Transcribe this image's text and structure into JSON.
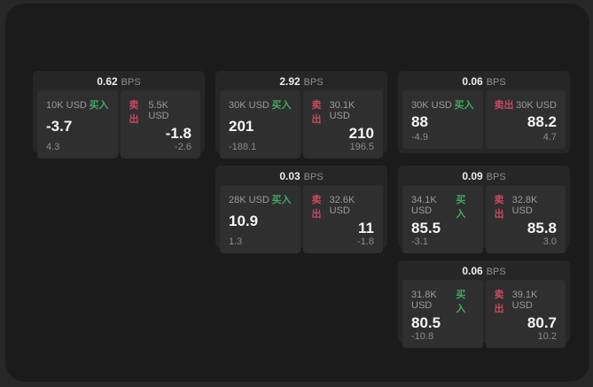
{
  "colors": {
    "buy": "#3eaa61",
    "sell": "#cc4763",
    "window_bg": "#1b1b1b",
    "card_bg": "#262626",
    "panel_bg": "#2f2f2f"
  },
  "bps_unit": "BPS",
  "cards": [
    {
      "bps": "0.62",
      "buy": {
        "size": "10K USD",
        "tag": "买入",
        "value": "-3.7",
        "sub": "4.3"
      },
      "sell": {
        "size": "5.5K USD",
        "tag": "卖出",
        "value": "-1.8",
        "sub": "-2.6"
      }
    },
    {
      "bps": "2.92",
      "buy": {
        "size": "30K USD",
        "tag": "买入",
        "value": "201",
        "sub": "-188.1"
      },
      "sell": {
        "size": "30.1K USD",
        "tag": "卖出",
        "value": "210",
        "sub": "196.5"
      }
    },
    {
      "bps": "0.06",
      "buy": {
        "size": "30K USD",
        "tag": "买入",
        "value": "88",
        "sub": "-4.9"
      },
      "sell": {
        "size": "30K USD",
        "tag": "卖出",
        "value": "88.2",
        "sub": "4.7"
      }
    },
    {
      "bps": "0.03",
      "buy": {
        "size": "28K USD",
        "tag": "买入",
        "value": "10.9",
        "sub": "1.3"
      },
      "sell": {
        "size": "32.6K USD",
        "tag": "卖出",
        "value": "11",
        "sub": "-1.8"
      }
    },
    {
      "bps": "0.09",
      "buy": {
        "size": "34.1K USD",
        "tag": "买入",
        "value": "85.5",
        "sub": "-3.1"
      },
      "sell": {
        "size": "32.8K USD",
        "tag": "卖出",
        "value": "85.8",
        "sub": "3.0"
      }
    },
    {
      "bps": "0.06",
      "buy": {
        "size": "31.8K USD",
        "tag": "买入",
        "value": "80.5",
        "sub": "-10.8"
      },
      "sell": {
        "size": "39.1K USD",
        "tag": "卖出",
        "value": "80.7",
        "sub": "10.2"
      }
    }
  ]
}
